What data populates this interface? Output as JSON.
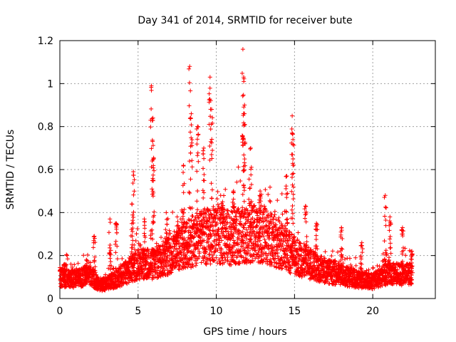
{
  "chart_data": {
    "type": "scatter",
    "title": "Day 341 of 2014, SRMTID for receiver bute",
    "xlabel": "GPS time / hours",
    "ylabel": "SRMTID / TECUs",
    "xlim": [
      0,
      24
    ],
    "ylim": [
      0,
      1.2
    ],
    "x_ticks": [
      0,
      5,
      10,
      15,
      20
    ],
    "x_tick_labels": [
      "0",
      "5",
      "10",
      "15",
      "20"
    ],
    "y_ticks": [
      0,
      0.2,
      0.4,
      0.6,
      0.8,
      1.0,
      1.2
    ],
    "y_tick_labels": [
      "0",
      "0.2",
      "0.4",
      "0.6",
      "0.8",
      "1",
      "1.2"
    ],
    "grid": true,
    "marker": "+",
    "color": "#ff0000",
    "series": [
      {
        "name": "SRMTID",
        "baseline": [
          [
            0.0,
            0.1
          ],
          [
            1.0,
            0.09
          ],
          [
            2.0,
            0.11
          ],
          [
            2.5,
            0.06
          ],
          [
            3.0,
            0.07
          ],
          [
            3.6,
            0.09
          ],
          [
            4.2,
            0.12
          ],
          [
            5.0,
            0.16
          ],
          [
            6.0,
            0.16
          ],
          [
            7.0,
            0.2
          ],
          [
            8.0,
            0.25
          ],
          [
            9.0,
            0.28
          ],
          [
            10.0,
            0.3
          ],
          [
            11.0,
            0.28
          ],
          [
            12.0,
            0.3
          ],
          [
            13.0,
            0.3
          ],
          [
            14.0,
            0.25
          ],
          [
            15.0,
            0.2
          ],
          [
            16.0,
            0.16
          ],
          [
            17.0,
            0.13
          ],
          [
            18.0,
            0.11
          ],
          [
            19.0,
            0.09
          ],
          [
            20.0,
            0.08
          ],
          [
            21.0,
            0.12
          ],
          [
            22.0,
            0.11
          ],
          [
            22.5,
            0.12
          ]
        ],
        "spikes": [
          {
            "x": 0.3,
            "h": 0.16
          },
          {
            "x": 1.7,
            "h": 0.18
          },
          {
            "x": 2.2,
            "h": 0.29
          },
          {
            "x": 3.2,
            "h": 0.37
          },
          {
            "x": 3.6,
            "h": 0.35
          },
          {
            "x": 4.6,
            "h": 0.44
          },
          {
            "x": 4.7,
            "h": 0.59
          },
          {
            "x": 5.4,
            "h": 0.37
          },
          {
            "x": 5.85,
            "h": 0.99
          },
          {
            "x": 5.95,
            "h": 0.84
          },
          {
            "x": 6.0,
            "h": 0.65
          },
          {
            "x": 6.8,
            "h": 0.4
          },
          {
            "x": 7.5,
            "h": 0.38
          },
          {
            "x": 7.9,
            "h": 0.62
          },
          {
            "x": 8.3,
            "h": 1.08
          },
          {
            "x": 8.4,
            "h": 0.86
          },
          {
            "x": 8.8,
            "h": 0.8
          },
          {
            "x": 9.2,
            "h": 0.7
          },
          {
            "x": 9.6,
            "h": 1.03
          },
          {
            "x": 9.7,
            "h": 0.88
          },
          {
            "x": 10.4,
            "h": 0.45
          },
          {
            "x": 11.1,
            "h": 0.5
          },
          {
            "x": 11.7,
            "h": 1.16
          },
          {
            "x": 11.75,
            "h": 1.03
          },
          {
            "x": 11.8,
            "h": 0.86
          },
          {
            "x": 12.2,
            "h": 0.7
          },
          {
            "x": 12.8,
            "h": 0.5
          },
          {
            "x": 14.5,
            "h": 0.57
          },
          {
            "x": 14.85,
            "h": 0.85
          },
          {
            "x": 14.9,
            "h": 0.74
          },
          {
            "x": 15.7,
            "h": 0.43
          },
          {
            "x": 16.4,
            "h": 0.35
          },
          {
            "x": 18.0,
            "h": 0.33
          },
          {
            "x": 19.3,
            "h": 0.26
          },
          {
            "x": 20.8,
            "h": 0.48
          },
          {
            "x": 21.1,
            "h": 0.38
          },
          {
            "x": 21.9,
            "h": 0.33
          },
          {
            "x": 22.5,
            "h": 0.22
          }
        ]
      }
    ]
  }
}
